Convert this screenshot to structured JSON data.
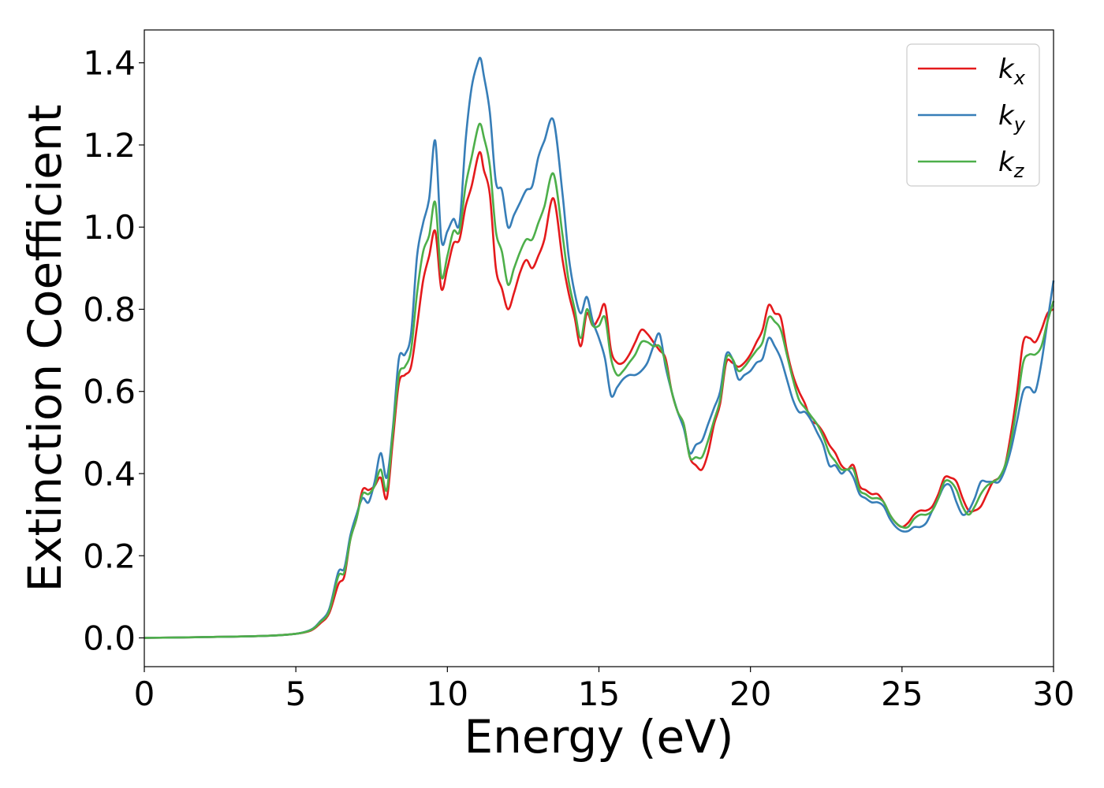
{
  "chart_data": {
    "type": "line",
    "xlabel": "Energy (eV)",
    "ylabel": "Extinction Coefficient",
    "xlim": [
      0,
      30
    ],
    "ylim": [
      -0.07,
      1.48
    ],
    "xticks": [
      0,
      5,
      10,
      15,
      20,
      25,
      30
    ],
    "xtick_labels": [
      "0",
      "5",
      "10",
      "15",
      "20",
      "25",
      "30"
    ],
    "yticks": [
      0.0,
      0.2,
      0.4,
      0.6,
      0.8,
      1.0,
      1.2,
      1.4
    ],
    "ytick_labels": [
      "0.0",
      "0.2",
      "0.4",
      "0.6",
      "0.8",
      "1.0",
      "1.2",
      "1.4"
    ],
    "grid": false,
    "legend_position": "top-right",
    "series": [
      {
        "name": "k",
        "subscript": "x",
        "color": "#e41a1c",
        "x": [
          0,
          2,
          4,
          5,
          5.5,
          5.8,
          6.1,
          6.4,
          6.6,
          6.8,
          7.0,
          7.2,
          7.4,
          7.6,
          7.8,
          8.0,
          8.2,
          8.4,
          8.6,
          8.8,
          9.0,
          9.2,
          9.4,
          9.6,
          9.8,
          10.0,
          10.2,
          10.4,
          10.6,
          10.8,
          11.0,
          11.1,
          11.2,
          11.4,
          11.6,
          11.8,
          12.0,
          12.2,
          12.4,
          12.6,
          12.8,
          13.0,
          13.2,
          13.5,
          13.8,
          14.0,
          14.2,
          14.4,
          14.6,
          14.8,
          15.0,
          15.2,
          15.4,
          15.6,
          15.8,
          16.0,
          16.2,
          16.4,
          16.6,
          16.8,
          17.0,
          17.2,
          17.4,
          17.6,
          17.8,
          18.0,
          18.2,
          18.4,
          18.6,
          18.8,
          19.0,
          19.2,
          19.4,
          19.6,
          19.8,
          20.0,
          20.2,
          20.4,
          20.6,
          20.8,
          21.0,
          21.2,
          21.4,
          21.6,
          21.8,
          22.0,
          22.2,
          22.4,
          22.6,
          22.8,
          23.0,
          23.2,
          23.4,
          23.6,
          23.8,
          24.0,
          24.2,
          24.4,
          24.6,
          24.8,
          25.0,
          25.2,
          25.4,
          25.6,
          25.8,
          26.0,
          26.2,
          26.4,
          26.6,
          26.8,
          27.0,
          27.2,
          27.4,
          27.6,
          27.8,
          28.0,
          28.2,
          28.4,
          28.6,
          28.8,
          29.0,
          29.2,
          29.4,
          29.6,
          29.8,
          30.0
        ],
        "y": [
          0,
          0.002,
          0.005,
          0.01,
          0.018,
          0.035,
          0.06,
          0.13,
          0.15,
          0.24,
          0.29,
          0.36,
          0.36,
          0.37,
          0.39,
          0.34,
          0.48,
          0.62,
          0.64,
          0.66,
          0.76,
          0.87,
          0.93,
          0.99,
          0.85,
          0.9,
          0.96,
          0.97,
          1.05,
          1.1,
          1.17,
          1.18,
          1.14,
          1.08,
          0.9,
          0.85,
          0.8,
          0.84,
          0.89,
          0.92,
          0.9,
          0.93,
          0.97,
          1.07,
          0.92,
          0.84,
          0.78,
          0.71,
          0.79,
          0.76,
          0.78,
          0.81,
          0.7,
          0.67,
          0.67,
          0.69,
          0.72,
          0.75,
          0.74,
          0.72,
          0.7,
          0.68,
          0.6,
          0.55,
          0.52,
          0.44,
          0.42,
          0.41,
          0.45,
          0.52,
          0.57,
          0.67,
          0.67,
          0.66,
          0.67,
          0.69,
          0.72,
          0.75,
          0.81,
          0.79,
          0.78,
          0.7,
          0.64,
          0.6,
          0.57,
          0.53,
          0.52,
          0.5,
          0.47,
          0.45,
          0.42,
          0.41,
          0.42,
          0.37,
          0.36,
          0.35,
          0.35,
          0.33,
          0.3,
          0.28,
          0.27,
          0.28,
          0.3,
          0.31,
          0.31,
          0.32,
          0.35,
          0.39,
          0.39,
          0.38,
          0.34,
          0.31,
          0.31,
          0.32,
          0.35,
          0.38,
          0.39,
          0.42,
          0.5,
          0.6,
          0.72,
          0.73,
          0.72,
          0.75,
          0.79,
          0.8
        ]
      },
      {
        "name": "k",
        "subscript": "y",
        "color": "#377eb8",
        "x": [
          0,
          2,
          4,
          5,
          5.5,
          5.8,
          6.1,
          6.4,
          6.6,
          6.8,
          7.0,
          7.2,
          7.4,
          7.6,
          7.8,
          8.0,
          8.2,
          8.4,
          8.6,
          8.8,
          9.0,
          9.2,
          9.4,
          9.6,
          9.8,
          10.0,
          10.2,
          10.4,
          10.6,
          10.8,
          11.0,
          11.1,
          11.2,
          11.4,
          11.6,
          11.8,
          12.0,
          12.2,
          12.4,
          12.6,
          12.8,
          13.0,
          13.2,
          13.5,
          13.8,
          14.0,
          14.2,
          14.4,
          14.6,
          14.8,
          15.0,
          15.2,
          15.4,
          15.6,
          15.8,
          16.0,
          16.2,
          16.4,
          16.6,
          16.8,
          17.0,
          17.2,
          17.4,
          17.6,
          17.8,
          18.0,
          18.2,
          18.4,
          18.6,
          18.8,
          19.0,
          19.2,
          19.4,
          19.6,
          19.8,
          20.0,
          20.2,
          20.4,
          20.6,
          20.8,
          21.0,
          21.2,
          21.4,
          21.6,
          21.8,
          22.0,
          22.2,
          22.4,
          22.6,
          22.8,
          23.0,
          23.2,
          23.4,
          23.6,
          23.8,
          24.0,
          24.2,
          24.4,
          24.6,
          24.8,
          25.0,
          25.2,
          25.4,
          25.6,
          25.8,
          26.0,
          26.2,
          26.4,
          26.6,
          26.8,
          27.0,
          27.2,
          27.4,
          27.6,
          27.8,
          28.0,
          28.2,
          28.4,
          28.6,
          28.8,
          29.0,
          29.2,
          29.4,
          29.6,
          29.8,
          30.0
        ],
        "y": [
          0,
          0.002,
          0.005,
          0.01,
          0.02,
          0.04,
          0.07,
          0.16,
          0.17,
          0.25,
          0.3,
          0.34,
          0.33,
          0.38,
          0.45,
          0.39,
          0.51,
          0.68,
          0.69,
          0.74,
          0.93,
          1.01,
          1.07,
          1.21,
          0.97,
          0.99,
          1.02,
          1.01,
          1.21,
          1.34,
          1.4,
          1.41,
          1.37,
          1.28,
          1.11,
          1.09,
          1.0,
          1.03,
          1.06,
          1.09,
          1.1,
          1.17,
          1.21,
          1.26,
          1.08,
          0.93,
          0.84,
          0.79,
          0.83,
          0.77,
          0.73,
          0.68,
          0.59,
          0.61,
          0.63,
          0.64,
          0.64,
          0.65,
          0.67,
          0.71,
          0.74,
          0.66,
          0.6,
          0.55,
          0.51,
          0.45,
          0.47,
          0.48,
          0.52,
          0.56,
          0.6,
          0.69,
          0.68,
          0.63,
          0.64,
          0.65,
          0.67,
          0.68,
          0.73,
          0.71,
          0.68,
          0.63,
          0.58,
          0.55,
          0.55,
          0.53,
          0.5,
          0.47,
          0.42,
          0.42,
          0.4,
          0.41,
          0.39,
          0.35,
          0.34,
          0.33,
          0.33,
          0.32,
          0.29,
          0.27,
          0.26,
          0.26,
          0.27,
          0.27,
          0.28,
          0.31,
          0.34,
          0.37,
          0.37,
          0.33,
          0.3,
          0.31,
          0.34,
          0.38,
          0.38,
          0.38,
          0.38,
          0.41,
          0.46,
          0.53,
          0.6,
          0.61,
          0.6,
          0.67,
          0.77,
          0.87
        ]
      },
      {
        "name": "k",
        "subscript": "z",
        "color": "#4daf4a",
        "x": [
          0,
          2,
          4,
          5,
          5.5,
          5.8,
          6.1,
          6.4,
          6.6,
          6.8,
          7.0,
          7.2,
          7.4,
          7.6,
          7.8,
          8.0,
          8.2,
          8.4,
          8.6,
          8.8,
          9.0,
          9.2,
          9.4,
          9.6,
          9.8,
          10.0,
          10.2,
          10.4,
          10.6,
          10.8,
          11.0,
          11.1,
          11.2,
          11.4,
          11.6,
          11.8,
          12.0,
          12.2,
          12.4,
          12.6,
          12.8,
          13.0,
          13.2,
          13.5,
          13.8,
          14.0,
          14.2,
          14.4,
          14.6,
          14.8,
          15.0,
          15.2,
          15.4,
          15.6,
          15.8,
          16.0,
          16.2,
          16.4,
          16.6,
          16.8,
          17.0,
          17.2,
          17.4,
          17.6,
          17.8,
          18.0,
          18.2,
          18.4,
          18.6,
          18.8,
          19.0,
          19.2,
          19.4,
          19.6,
          19.8,
          20.0,
          20.2,
          20.4,
          20.6,
          20.8,
          21.0,
          21.2,
          21.4,
          21.6,
          21.8,
          22.0,
          22.2,
          22.4,
          22.6,
          22.8,
          23.0,
          23.2,
          23.4,
          23.6,
          23.8,
          24.0,
          24.2,
          24.4,
          24.6,
          24.8,
          25.0,
          25.2,
          25.4,
          25.6,
          25.8,
          26.0,
          26.2,
          26.4,
          26.6,
          26.8,
          27.0,
          27.2,
          27.4,
          27.6,
          27.8,
          28.0,
          28.2,
          28.4,
          28.6,
          28.8,
          29.0,
          29.2,
          29.4,
          29.6,
          29.8,
          30.0
        ],
        "y": [
          0,
          0.002,
          0.005,
          0.01,
          0.019,
          0.038,
          0.065,
          0.15,
          0.16,
          0.24,
          0.29,
          0.35,
          0.35,
          0.37,
          0.41,
          0.36,
          0.5,
          0.64,
          0.66,
          0.7,
          0.84,
          0.94,
          0.98,
          1.06,
          0.88,
          0.93,
          0.99,
          0.99,
          1.1,
          1.17,
          1.24,
          1.25,
          1.22,
          1.15,
          0.99,
          0.94,
          0.86,
          0.9,
          0.94,
          0.97,
          0.97,
          1.01,
          1.05,
          1.13,
          0.98,
          0.87,
          0.8,
          0.73,
          0.8,
          0.76,
          0.76,
          0.78,
          0.68,
          0.64,
          0.65,
          0.67,
          0.69,
          0.72,
          0.72,
          0.71,
          0.71,
          0.67,
          0.6,
          0.55,
          0.52,
          0.44,
          0.44,
          0.44,
          0.48,
          0.53,
          0.58,
          0.68,
          0.68,
          0.65,
          0.66,
          0.68,
          0.7,
          0.72,
          0.78,
          0.77,
          0.75,
          0.69,
          0.63,
          0.58,
          0.56,
          0.54,
          0.52,
          0.49,
          0.45,
          0.43,
          0.41,
          0.41,
          0.41,
          0.36,
          0.35,
          0.34,
          0.34,
          0.33,
          0.3,
          0.28,
          0.27,
          0.27,
          0.29,
          0.3,
          0.3,
          0.31,
          0.34,
          0.38,
          0.38,
          0.36,
          0.32,
          0.3,
          0.32,
          0.35,
          0.37,
          0.38,
          0.39,
          0.42,
          0.48,
          0.57,
          0.67,
          0.69,
          0.69,
          0.71,
          0.77,
          0.82
        ]
      }
    ]
  }
}
